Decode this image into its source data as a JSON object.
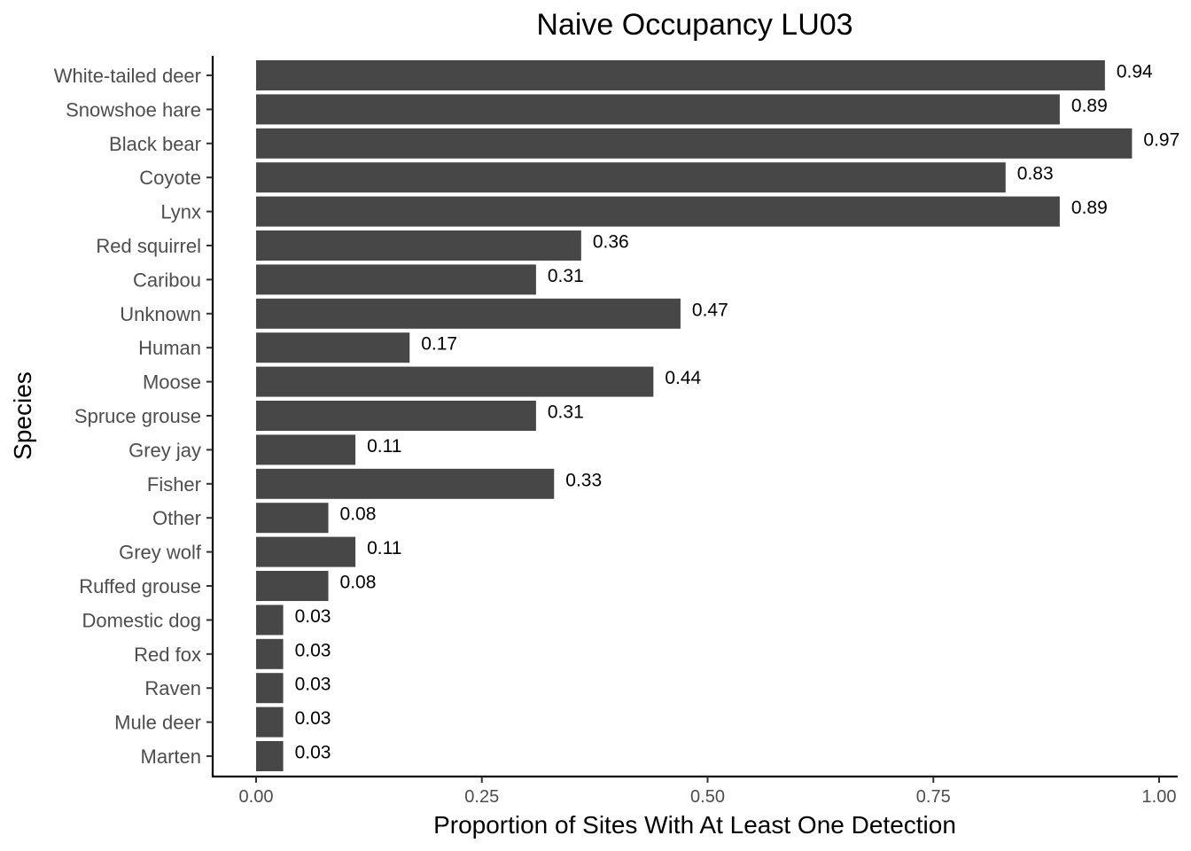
{
  "chart_data": {
    "type": "bar",
    "orientation": "horizontal",
    "title": "Naive Occupancy LU03",
    "xlabel": "Proportion of Sites With At Least One Detection",
    "ylabel": "Species",
    "categories": [
      "White-tailed deer",
      "Snowshoe hare",
      "Black bear",
      "Coyote",
      "Lynx",
      "Red squirrel",
      "Caribou",
      "Unknown",
      "Human",
      "Moose",
      "Spruce grouse",
      "Grey jay",
      "Fisher",
      "Other",
      "Grey wolf",
      "Ruffed grouse",
      "Domestic dog",
      "Red fox",
      "Raven",
      "Mule deer",
      "Marten"
    ],
    "values": [
      0.94,
      0.89,
      0.97,
      0.83,
      0.89,
      0.36,
      0.31,
      0.47,
      0.17,
      0.44,
      0.31,
      0.11,
      0.33,
      0.08,
      0.11,
      0.08,
      0.03,
      0.03,
      0.03,
      0.03,
      0.03
    ],
    "value_labels": [
      "0.94",
      "0.89",
      "0.97",
      "0.83",
      "0.89",
      "0.36",
      "0.31",
      "0.47",
      "0.17",
      "0.44",
      "0.31",
      "0.11",
      "0.33",
      "0.08",
      "0.11",
      "0.08",
      "0.03",
      "0.03",
      "0.03",
      "0.03",
      "0.03"
    ],
    "xticks": [
      "0.00",
      "0.25",
      "0.50",
      "0.75",
      "1.00"
    ],
    "xlim": [
      0,
      1
    ],
    "grid": false,
    "bar_color": "#474747"
  }
}
